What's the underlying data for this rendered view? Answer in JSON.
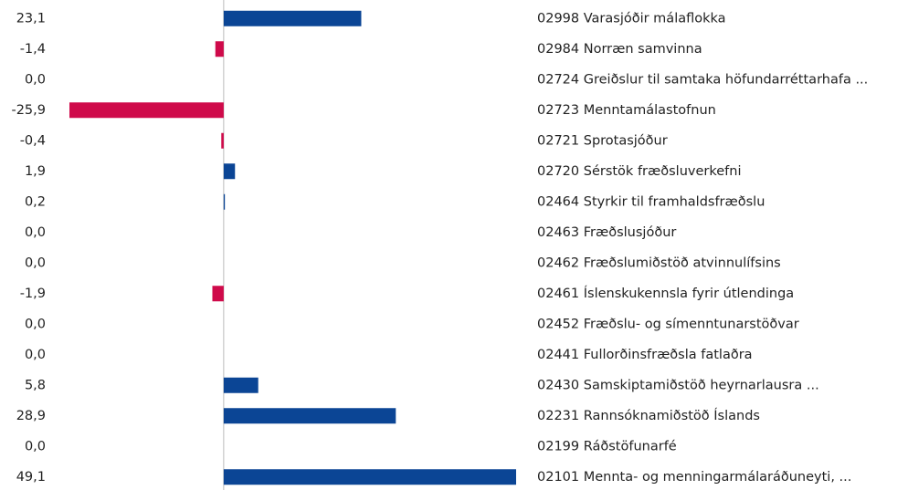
{
  "chart_data": {
    "type": "hbar",
    "categories": [
      "02998 Varasjóðir málaflokka",
      "02984 Norræn samvinna",
      "02724 Greiðslur til samtaka höfundarréttarhafa ...",
      "02723 Menntamálastofnun",
      "02721 Sprotasjóður",
      "02720 Sérstök fræðsluverkefni",
      "02464 Styrkir til framhaldsfræðslu",
      "02463 Fræðslusjóður",
      "02462 Fræðslumiðstöð atvinnulífsins",
      "02461 Íslenskukennsla fyrir útlendinga",
      "02452 Fræðslu- og símenntunarstöðvar",
      "02441 Fullorðinsfræðsla fatlaðra",
      "02430 Samskiptamiðstöð heyrnarlausra ...",
      "02231 Rannsóknamiðstöð Íslands",
      "02199 Ráðstöfunarfé",
      "02101 Mennta- og menningarmálaráðuneyti, ..."
    ],
    "values": [
      23.1,
      -1.4,
      0,
      -25.9,
      -0.4,
      1.9,
      0.2,
      0,
      0,
      -1.9,
      0,
      0,
      5.8,
      28.9,
      0,
      49.1
    ],
    "value_labels": [
      "23,1",
      "-1,4",
      "0,0",
      "-25,9",
      "-0,4",
      "1,9",
      "0,2",
      "0,0",
      "0,0",
      "-1,9",
      "0,0",
      "0,0",
      "5,8",
      "28,9",
      "0,0",
      "49,1"
    ],
    "color": "#0b4595",
    "negative_color": "#cf0a4a",
    "xlim": [
      -25.9,
      49.1
    ]
  }
}
